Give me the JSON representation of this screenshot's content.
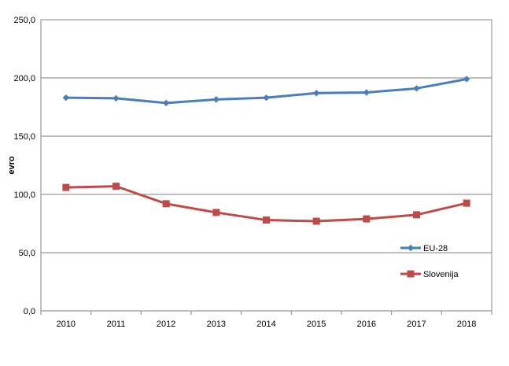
{
  "chart_data": {
    "type": "line",
    "title": "",
    "xlabel": "",
    "ylabel": "evro",
    "categories": [
      "2010",
      "2011",
      "2012",
      "2013",
      "2014",
      "2015",
      "2016",
      "2017",
      "2018"
    ],
    "ylim": [
      0,
      250
    ],
    "yticks": [
      "0,0",
      "50,0",
      "100,0",
      "150,0",
      "200,0",
      "250,0"
    ],
    "grid": true,
    "legend": "right",
    "series": [
      {
        "name": "EU-28",
        "color": "#4a7ebb",
        "marker": "diamond",
        "values": [
          183,
          182.5,
          178.5,
          181.5,
          183,
          187,
          187.5,
          191,
          199
        ]
      },
      {
        "name": "Slovenija",
        "color": "#be4b48",
        "marker": "square",
        "values": [
          106,
          107,
          92,
          84.5,
          78,
          77,
          79,
          82.5,
          92.5
        ]
      }
    ]
  }
}
